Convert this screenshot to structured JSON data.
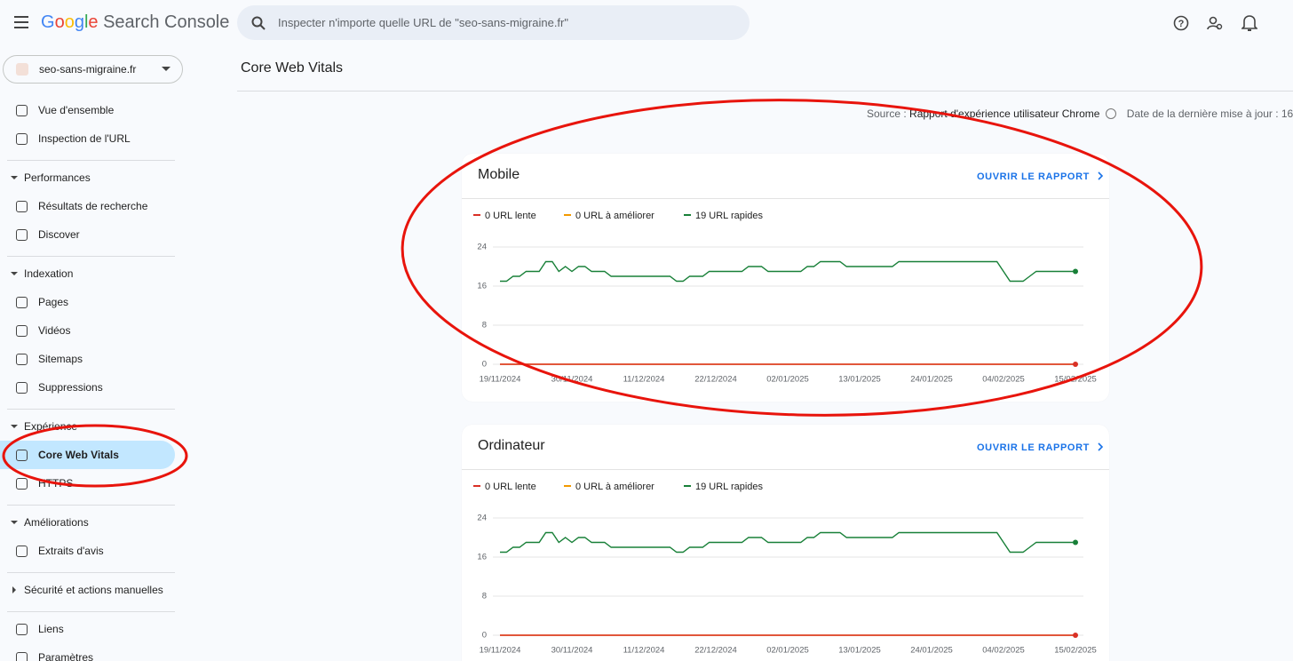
{
  "header": {
    "product": "Google Search Console",
    "search_placeholder": "Inspecter n'importe quelle URL de \"seo-sans-migraine.fr\""
  },
  "property": "seo-sans-migraine.fr",
  "nav": {
    "top": [
      {
        "label": "Vue d'ensemble"
      },
      {
        "label": "Inspection de l'URL"
      }
    ],
    "sections": [
      {
        "title": "Performances",
        "expanded": true,
        "items": [
          {
            "label": "Résultats de recherche"
          },
          {
            "label": "Discover"
          }
        ]
      },
      {
        "title": "Indexation",
        "expanded": true,
        "items": [
          {
            "label": "Pages"
          },
          {
            "label": "Vidéos"
          },
          {
            "label": "Sitemaps"
          },
          {
            "label": "Suppressions"
          }
        ]
      },
      {
        "title": "Expérience",
        "expanded": true,
        "items": [
          {
            "label": "Core Web Vitals",
            "selected": true
          },
          {
            "label": "HTTPS"
          }
        ]
      },
      {
        "title": "Améliorations",
        "expanded": true,
        "items": [
          {
            "label": "Extraits d'avis"
          }
        ]
      },
      {
        "title": "Sécurité et actions manuelles",
        "expanded": false,
        "items": []
      }
    ],
    "bottom": [
      {
        "label": "Liens"
      },
      {
        "label": "Paramètres"
      }
    ]
  },
  "page_title": "Core Web Vitals",
  "source": {
    "label": "Source :",
    "value": "Rapport d'expérience utilisateur Chrome",
    "date": "Date de la dernière mise à jour : 16/"
  },
  "chart_data": [
    {
      "type": "line",
      "title": "Mobile",
      "link": "OUVRIR LE RAPPORT",
      "categories": [
        "19/11/2024",
        null,
        null,
        null,
        null,
        null,
        null,
        null,
        null,
        null,
        null,
        "30/11/2024",
        null,
        null,
        null,
        null,
        null,
        null,
        null,
        null,
        null,
        null,
        "11/12/2024",
        null,
        null,
        null,
        null,
        null,
        null,
        null,
        null,
        null,
        null,
        "22/12/2024",
        null,
        null,
        null,
        null,
        null,
        null,
        null,
        null,
        null,
        null,
        "02/01/2025",
        null,
        null,
        null,
        null,
        null,
        null,
        null,
        null,
        null,
        null,
        "13/01/2025",
        null,
        null,
        null,
        null,
        null,
        null,
        null,
        null,
        null,
        null,
        "24/01/2025",
        null,
        null,
        null,
        null,
        null,
        null,
        null,
        null,
        null,
        null,
        "04/02/2025",
        null,
        null,
        null,
        null,
        null,
        null,
        null,
        null,
        null,
        null,
        "15/02/2025"
      ],
      "ylim": [
        0,
        24
      ],
      "yticks": [
        0,
        8,
        16,
        24
      ],
      "grid": true,
      "series": [
        {
          "name": "0 URL lente",
          "color": "#d93025",
          "values": [
            0,
            0,
            0,
            0,
            0,
            0,
            0,
            0,
            0,
            0,
            0,
            0,
            0,
            0,
            0,
            0,
            0,
            0,
            0,
            0,
            0,
            0,
            0,
            0,
            0,
            0,
            0,
            0,
            0,
            0,
            0,
            0,
            0,
            0,
            0,
            0,
            0,
            0,
            0,
            0,
            0,
            0,
            0,
            0,
            0,
            0,
            0,
            0,
            0,
            0,
            0,
            0,
            0,
            0,
            0,
            0,
            0,
            0,
            0,
            0,
            0,
            0,
            0,
            0,
            0,
            0,
            0,
            0,
            0,
            0,
            0,
            0,
            0,
            0,
            0,
            0,
            0,
            0,
            0,
            0,
            0,
            0,
            0,
            0,
            0,
            0,
            0,
            0,
            0
          ]
        },
        {
          "name": "0 URL à améliorer",
          "color": "#f29900",
          "values": [
            0,
            0,
            0,
            0,
            0,
            0,
            0,
            0,
            0,
            0,
            0,
            0,
            0,
            0,
            0,
            0,
            0,
            0,
            0,
            0,
            0,
            0,
            0,
            0,
            0,
            0,
            0,
            0,
            0,
            0,
            0,
            0,
            0,
            0,
            0,
            0,
            0,
            0,
            0,
            0,
            0,
            0,
            0,
            0,
            0,
            0,
            0,
            0,
            0,
            0,
            0,
            0,
            0,
            0,
            0,
            0,
            0,
            0,
            0,
            0,
            0,
            0,
            0,
            0,
            0,
            0,
            0,
            0,
            0,
            0,
            0,
            0,
            0,
            0,
            0,
            0,
            0,
            0,
            0,
            0,
            0,
            0,
            0,
            0,
            0,
            0,
            0,
            0,
            0
          ]
        },
        {
          "name": "19 URL rapides",
          "color": "#188038",
          "values": [
            17,
            17,
            18,
            18,
            19,
            19,
            19,
            21,
            21,
            19,
            20,
            19,
            20,
            20,
            19,
            19,
            19,
            18,
            18,
            18,
            18,
            18,
            18,
            18,
            18,
            18,
            18,
            17,
            17,
            18,
            18,
            18,
            19,
            19,
            19,
            19,
            19,
            19,
            20,
            20,
            20,
            19,
            19,
            19,
            19,
            19,
            19,
            20,
            20,
            21,
            21,
            21,
            21,
            20,
            20,
            20,
            20,
            20,
            20,
            20,
            20,
            21,
            21,
            21,
            21,
            21,
            21,
            21,
            21,
            21,
            21,
            21,
            21,
            21,
            21,
            21,
            21,
            19,
            17,
            17,
            17,
            18,
            19,
            19,
            19,
            19,
            19,
            19,
            19
          ]
        }
      ]
    },
    {
      "type": "line",
      "title": "Ordinateur",
      "link": "OUVRIR LE RAPPORT",
      "categories": [
        "19/11/2024",
        null,
        null,
        null,
        null,
        null,
        null,
        null,
        null,
        null,
        null,
        "30/11/2024",
        null,
        null,
        null,
        null,
        null,
        null,
        null,
        null,
        null,
        null,
        "11/12/2024",
        null,
        null,
        null,
        null,
        null,
        null,
        null,
        null,
        null,
        null,
        "22/12/2024",
        null,
        null,
        null,
        null,
        null,
        null,
        null,
        null,
        null,
        null,
        "02/01/2025",
        null,
        null,
        null,
        null,
        null,
        null,
        null,
        null,
        null,
        null,
        "13/01/2025",
        null,
        null,
        null,
        null,
        null,
        null,
        null,
        null,
        null,
        null,
        "24/01/2025",
        null,
        null,
        null,
        null,
        null,
        null,
        null,
        null,
        null,
        null,
        "04/02/2025",
        null,
        null,
        null,
        null,
        null,
        null,
        null,
        null,
        null,
        null,
        "15/02/2025"
      ],
      "ylim": [
        0,
        24
      ],
      "yticks": [
        0,
        8,
        16,
        24
      ],
      "grid": true,
      "series": [
        {
          "name": "0 URL lente",
          "color": "#d93025",
          "values": [
            0,
            0,
            0,
            0,
            0,
            0,
            0,
            0,
            0,
            0,
            0,
            0,
            0,
            0,
            0,
            0,
            0,
            0,
            0,
            0,
            0,
            0,
            0,
            0,
            0,
            0,
            0,
            0,
            0,
            0,
            0,
            0,
            0,
            0,
            0,
            0,
            0,
            0,
            0,
            0,
            0,
            0,
            0,
            0,
            0,
            0,
            0,
            0,
            0,
            0,
            0,
            0,
            0,
            0,
            0,
            0,
            0,
            0,
            0,
            0,
            0,
            0,
            0,
            0,
            0,
            0,
            0,
            0,
            0,
            0,
            0,
            0,
            0,
            0,
            0,
            0,
            0,
            0,
            0,
            0,
            0,
            0,
            0,
            0,
            0,
            0,
            0,
            0,
            0
          ]
        },
        {
          "name": "0 URL à améliorer",
          "color": "#f29900",
          "values": [
            0,
            0,
            0,
            0,
            0,
            0,
            0,
            0,
            0,
            0,
            0,
            0,
            0,
            0,
            0,
            0,
            0,
            0,
            0,
            0,
            0,
            0,
            0,
            0,
            0,
            0,
            0,
            0,
            0,
            0,
            0,
            0,
            0,
            0,
            0,
            0,
            0,
            0,
            0,
            0,
            0,
            0,
            0,
            0,
            0,
            0,
            0,
            0,
            0,
            0,
            0,
            0,
            0,
            0,
            0,
            0,
            0,
            0,
            0,
            0,
            0,
            0,
            0,
            0,
            0,
            0,
            0,
            0,
            0,
            0,
            0,
            0,
            0,
            0,
            0,
            0,
            0,
            0,
            0,
            0,
            0,
            0,
            0,
            0,
            0,
            0,
            0,
            0,
            0
          ]
        },
        {
          "name": "19 URL rapides",
          "color": "#188038",
          "values": [
            17,
            17,
            18,
            18,
            19,
            19,
            19,
            21,
            21,
            19,
            20,
            19,
            20,
            20,
            19,
            19,
            19,
            18,
            18,
            18,
            18,
            18,
            18,
            18,
            18,
            18,
            18,
            17,
            17,
            18,
            18,
            18,
            19,
            19,
            19,
            19,
            19,
            19,
            20,
            20,
            20,
            19,
            19,
            19,
            19,
            19,
            19,
            20,
            20,
            21,
            21,
            21,
            21,
            20,
            20,
            20,
            20,
            20,
            20,
            20,
            20,
            21,
            21,
            21,
            21,
            21,
            21,
            21,
            21,
            21,
            21,
            21,
            21,
            21,
            21,
            21,
            21,
            19,
            17,
            17,
            17,
            18,
            19,
            19,
            19,
            19,
            19,
            19,
            19
          ]
        }
      ]
    }
  ]
}
